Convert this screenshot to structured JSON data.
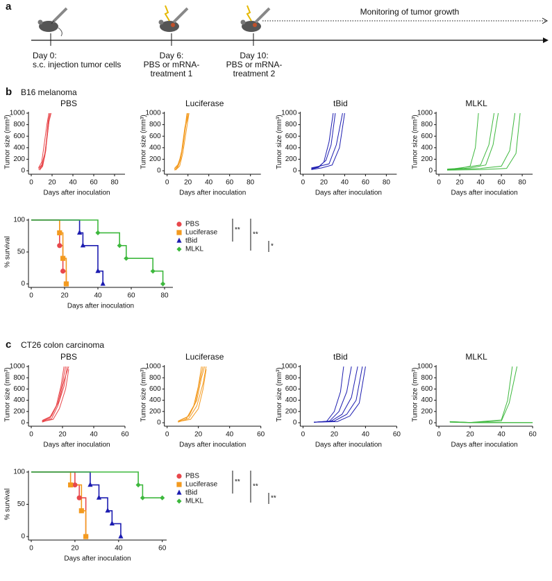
{
  "figure": {
    "panels": [
      {
        "label": "a"
      },
      {
        "label": "b",
        "title": "B16 melanoma"
      },
      {
        "label": "c",
        "title": "CT26 colon carcinoma"
      }
    ]
  },
  "schematic": {
    "monitoring": "Monitoring of tumor growth",
    "steps": [
      [
        "Day 0:",
        "s.c. injection tumor cells"
      ],
      [
        "Day 6:",
        "PBS or mRNA-",
        "treatment 1"
      ],
      [
        "Day 10:",
        "PBS or mRNA-",
        "treatment 2"
      ]
    ]
  },
  "chart_data": [
    {
      "type": "line",
      "title": "PBS",
      "xlabel": "Days after inoculation",
      "ylabel": "Tumor size (mm³)",
      "xlim": [
        0,
        90
      ],
      "ylim": [
        0,
        1000
      ],
      "xticks": [
        0,
        20,
        40,
        60,
        80
      ],
      "yticks": [
        0,
        200,
        400,
        600,
        800,
        1000
      ],
      "series": [
        {
          "color": "#e8474b",
          "x": [
            7,
            10,
            13,
            15,
            17
          ],
          "values": [
            20,
            60,
            250,
            600,
            1000
          ]
        },
        {
          "color": "#e8474b",
          "x": [
            7,
            10,
            13,
            16,
            18
          ],
          "values": [
            40,
            100,
            300,
            700,
            1000
          ]
        },
        {
          "color": "#e8474b",
          "x": [
            8,
            11,
            14,
            16,
            19
          ],
          "values": [
            10,
            80,
            350,
            800,
            1000
          ]
        },
        {
          "color": "#e8474b",
          "x": [
            7,
            10,
            12,
            15,
            17
          ],
          "values": [
            50,
            150,
            400,
            800,
            1000
          ]
        },
        {
          "color": "#e8474b",
          "x": [
            8,
            11,
            14,
            17,
            19
          ],
          "values": [
            30,
            120,
            380,
            850,
            1000
          ]
        }
      ]
    },
    {
      "type": "line",
      "title": "Luciferase",
      "xlabel": "Days after inoculation",
      "ylabel": "Tumor size (mm³)",
      "xlim": [
        0,
        90
      ],
      "ylim": [
        0,
        1000
      ],
      "xticks": [
        0,
        20,
        40,
        60,
        80
      ],
      "yticks": [
        0,
        200,
        400,
        600,
        800,
        1000
      ],
      "series": [
        {
          "color": "#f39a1f",
          "x": [
            7,
            10,
            13,
            16,
            19
          ],
          "values": [
            10,
            50,
            200,
            550,
            1000
          ]
        },
        {
          "color": "#f39a1f",
          "x": [
            7,
            10,
            14,
            17,
            20
          ],
          "values": [
            30,
            90,
            300,
            700,
            1000
          ]
        },
        {
          "color": "#f39a1f",
          "x": [
            8,
            11,
            14,
            17,
            20
          ],
          "values": [
            20,
            100,
            350,
            750,
            1000
          ]
        },
        {
          "color": "#f39a1f",
          "x": [
            7,
            11,
            15,
            18,
            21
          ],
          "values": [
            40,
            120,
            400,
            800,
            1000
          ]
        },
        {
          "color": "#f39a1f",
          "x": [
            8,
            12,
            15,
            18,
            21
          ],
          "values": [
            10,
            80,
            300,
            650,
            1000
          ]
        }
      ]
    },
    {
      "type": "line",
      "title": "tBid",
      "xlabel": "Days after inoculation",
      "ylabel": "Tumor size (mm³)",
      "xlim": [
        0,
        90
      ],
      "ylim": [
        0,
        1000
      ],
      "xticks": [
        0,
        20,
        40,
        60,
        80
      ],
      "yticks": [
        0,
        200,
        400,
        600,
        800,
        1000
      ],
      "series": [
        {
          "color": "#1c1cb0",
          "x": [
            8,
            15,
            20,
            25,
            29
          ],
          "values": [
            30,
            60,
            150,
            500,
            1000
          ]
        },
        {
          "color": "#1c1cb0",
          "x": [
            8,
            15,
            22,
            27,
            31
          ],
          "values": [
            40,
            70,
            180,
            450,
            1000
          ]
        },
        {
          "color": "#1c1cb0",
          "x": [
            8,
            16,
            25,
            32,
            38
          ],
          "values": [
            50,
            80,
            120,
            450,
            1000
          ]
        },
        {
          "color": "#1c1cb0",
          "x": [
            8,
            18,
            28,
            35,
            40
          ],
          "values": [
            20,
            50,
            100,
            400,
            1000
          ]
        }
      ]
    },
    {
      "type": "line",
      "title": "MLKL",
      "xlabel": "Days after inoculation",
      "ylabel": "Tumor size (mm³)",
      "xlim": [
        0,
        90
      ],
      "ylim": [
        0,
        1000
      ],
      "xticks": [
        0,
        20,
        40,
        60,
        80
      ],
      "yticks": [
        0,
        200,
        400,
        600,
        800,
        1000
      ],
      "series": [
        {
          "color": "#3db83d",
          "x": [
            8,
            20,
            30,
            35,
            38
          ],
          "values": [
            30,
            40,
            80,
            400,
            1000
          ]
        },
        {
          "color": "#3db83d",
          "x": [
            8,
            25,
            40,
            48,
            53
          ],
          "values": [
            20,
            60,
            100,
            450,
            1000
          ]
        },
        {
          "color": "#3db83d",
          "x": [
            8,
            30,
            45,
            52,
            57
          ],
          "values": [
            10,
            50,
            100,
            450,
            1000
          ]
        },
        {
          "color": "#3db83d",
          "x": [
            8,
            40,
            60,
            68,
            73
          ],
          "values": [
            20,
            40,
            80,
            350,
            1000
          ]
        },
        {
          "color": "#3db83d",
          "x": [
            8,
            40,
            65,
            74,
            78
          ],
          "values": [
            10,
            20,
            40,
            300,
            1000
          ]
        }
      ]
    },
    {
      "type": "step",
      "xlabel": "Days after inoculation",
      "ylabel": "% survival",
      "xlim": [
        0,
        85
      ],
      "ylim": [
        0,
        100
      ],
      "xticks": [
        0,
        20,
        40,
        60,
        80
      ],
      "yticks": [
        0,
        50,
        100
      ],
      "annotations": [
        "**",
        "**",
        "*"
      ],
      "series": [
        {
          "name": "PBS",
          "color": "#e8474b",
          "marker": "circle",
          "x": [
            0,
            17,
            19,
            21
          ],
          "values": [
            100,
            60,
            20,
            0
          ]
        },
        {
          "name": "Luciferase",
          "color": "#f39a1f",
          "marker": "square",
          "x": [
            0,
            17,
            19,
            21
          ],
          "values": [
            100,
            80,
            40,
            0
          ]
        },
        {
          "name": "tBid",
          "color": "#1c1cb0",
          "marker": "triangle",
          "x": [
            0,
            29,
            31,
            40,
            43
          ],
          "values": [
            100,
            80,
            60,
            20,
            0
          ]
        },
        {
          "name": "MLKL",
          "color": "#3db83d",
          "marker": "diamond",
          "x": [
            0,
            40,
            53,
            57,
            73,
            79
          ],
          "values": [
            100,
            80,
            60,
            40,
            20,
            0
          ]
        }
      ]
    },
    {
      "type": "line",
      "title": "PBS",
      "xlabel": "Days after inoculation",
      "ylabel": "Tumor size (mm³)",
      "xlim": [
        0,
        60
      ],
      "ylim": [
        0,
        1000
      ],
      "xticks": [
        0,
        20,
        40,
        60
      ],
      "yticks": [
        0,
        200,
        400,
        600,
        800,
        1000
      ],
      "series": [
        {
          "color": "#e8474b",
          "x": [
            7,
            12,
            16,
            19,
            21
          ],
          "values": [
            20,
            80,
            300,
            650,
            1000
          ]
        },
        {
          "color": "#e8474b",
          "x": [
            7,
            12,
            17,
            20,
            22
          ],
          "values": [
            30,
            100,
            350,
            700,
            1000
          ]
        },
        {
          "color": "#e8474b",
          "x": [
            7,
            13,
            17,
            21,
            23
          ],
          "values": [
            10,
            70,
            300,
            650,
            1000
          ]
        },
        {
          "color": "#e8474b",
          "x": [
            7,
            13,
            18,
            21,
            24
          ],
          "values": [
            40,
            120,
            400,
            750,
            1000
          ]
        },
        {
          "color": "#e8474b",
          "x": [
            7,
            14,
            18,
            22,
            24
          ],
          "values": [
            20,
            60,
            250,
            600,
            950
          ]
        }
      ]
    },
    {
      "type": "line",
      "title": "Luciferase",
      "xlabel": "Days after inoculation",
      "ylabel": "Tumor size (mm³)",
      "xlim": [
        0,
        60
      ],
      "ylim": [
        0,
        1000
      ],
      "xticks": [
        0,
        20,
        40,
        60
      ],
      "yticks": [
        0,
        200,
        400,
        600,
        800,
        1000
      ],
      "series": [
        {
          "color": "#f39a1f",
          "x": [
            7,
            12,
            17,
            20,
            22
          ],
          "values": [
            10,
            60,
            300,
            650,
            1000
          ]
        },
        {
          "color": "#f39a1f",
          "x": [
            7,
            13,
            18,
            21,
            23
          ],
          "values": [
            20,
            100,
            350,
            750,
            1000
          ]
        },
        {
          "color": "#f39a1f",
          "x": [
            7,
            14,
            19,
            22,
            24
          ],
          "values": [
            30,
            120,
            400,
            800,
            1000
          ]
        },
        {
          "color": "#f39a1f",
          "x": [
            7,
            14,
            19,
            23,
            25
          ],
          "values": [
            10,
            80,
            300,
            700,
            1000
          ]
        },
        {
          "color": "#f39a1f",
          "x": [
            7,
            15,
            20,
            23,
            25
          ],
          "values": [
            20,
            60,
            250,
            600,
            950
          ]
        }
      ]
    },
    {
      "type": "line",
      "title": "tBid",
      "xlabel": "Days after inoculation",
      "ylabel": "Tumor size (mm³)",
      "xlim": [
        0,
        60
      ],
      "ylim": [
        0,
        1000
      ],
      "xticks": [
        0,
        20,
        40,
        60
      ],
      "yticks": [
        0,
        200,
        400,
        600,
        800,
        1000
      ],
      "series": [
        {
          "color": "#1c1cb0",
          "x": [
            7,
            15,
            20,
            24,
            26
          ],
          "values": [
            10,
            20,
            200,
            550,
            1000
          ]
        },
        {
          "color": "#1c1cb0",
          "x": [
            7,
            17,
            23,
            28,
            31
          ],
          "values": [
            10,
            30,
            200,
            550,
            1000
          ]
        },
        {
          "color": "#1c1cb0",
          "x": [
            7,
            18,
            25,
            31,
            35
          ],
          "values": [
            10,
            30,
            150,
            450,
            1000
          ]
        },
        {
          "color": "#1c1cb0",
          "x": [
            7,
            20,
            28,
            34,
            38
          ],
          "values": [
            10,
            30,
            150,
            400,
            1000
          ]
        },
        {
          "color": "#1c1cb0",
          "x": [
            7,
            22,
            30,
            36,
            40
          ],
          "values": [
            10,
            20,
            120,
            350,
            1000
          ]
        }
      ]
    },
    {
      "type": "line",
      "title": "MLKL",
      "xlabel": "Days after inoculation",
      "ylabel": "Tumor size (mm³)",
      "xlim": [
        0,
        60
      ],
      "ylim": [
        0,
        1000
      ],
      "xticks": [
        0,
        20,
        40,
        60
      ],
      "yticks": [
        0,
        200,
        400,
        600,
        800,
        1000
      ],
      "series": [
        {
          "color": "#3db83d",
          "x": [
            7,
            20,
            40,
            44,
            47
          ],
          "values": [
            20,
            5,
            50,
            400,
            1000
          ]
        },
        {
          "color": "#3db83d",
          "x": [
            7,
            20,
            40,
            45,
            50
          ],
          "values": [
            20,
            5,
            30,
            350,
            1000
          ]
        },
        {
          "color": "#3db83d",
          "x": [
            7,
            20,
            40,
            60
          ],
          "values": [
            10,
            0,
            0,
            0
          ]
        },
        {
          "color": "#3db83d",
          "x": [
            7,
            20,
            40,
            60
          ],
          "values": [
            15,
            5,
            5,
            5
          ]
        }
      ]
    },
    {
      "type": "step",
      "xlabel": "Days after inoculation",
      "ylabel": "% survival",
      "xlim": [
        0,
        62
      ],
      "ylim": [
        0,
        100
      ],
      "xticks": [
        0,
        20,
        40,
        60
      ],
      "yticks": [
        0,
        50,
        100
      ],
      "annotations": [
        "**",
        "**",
        "**"
      ],
      "series": [
        {
          "name": "PBS",
          "color": "#e8474b",
          "marker": "circle",
          "x": [
            0,
            20,
            22,
            25
          ],
          "values": [
            100,
            80,
            60,
            0
          ]
        },
        {
          "name": "Luciferase",
          "color": "#f39a1f",
          "marker": "square",
          "x": [
            0,
            18,
            23,
            25
          ],
          "values": [
            100,
            80,
            40,
            0
          ]
        },
        {
          "name": "tBid",
          "color": "#1c1cb0",
          "marker": "triangle",
          "x": [
            0,
            27,
            31,
            35,
            37,
            41
          ],
          "values": [
            100,
            80,
            60,
            40,
            20,
            0
          ]
        },
        {
          "name": "MLKL",
          "color": "#3db83d",
          "marker": "diamond",
          "x": [
            0,
            49,
            51,
            60
          ],
          "values": [
            100,
            80,
            60,
            60
          ]
        }
      ]
    }
  ]
}
